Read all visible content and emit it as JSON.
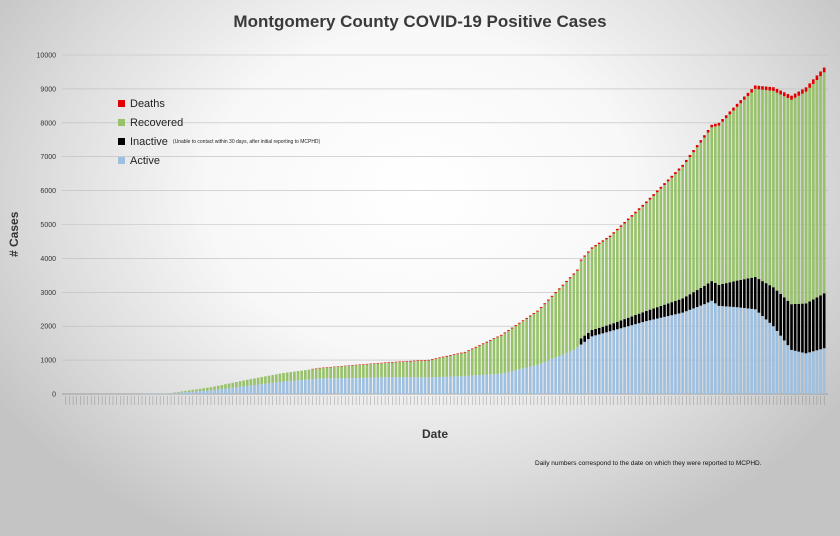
{
  "chart_data": {
    "type": "bar",
    "stacked": true,
    "title": "Montgomery County COVID-19 Positive Cases",
    "xlabel": "Date",
    "ylabel": "# Cases",
    "ylim": [
      0,
      10000
    ],
    "yticks": [
      0,
      1000,
      2000,
      3000,
      4000,
      5000,
      6000,
      7000,
      8000,
      9000,
      10000
    ],
    "grid": true,
    "legend_position": "left, upper area inside plot",
    "bar_count": 210,
    "series": [
      {
        "name": "Deaths",
        "color": "#e00000",
        "nonzero_from_bar": 68,
        "anchors": [
          [
            68,
            10
          ],
          [
            100,
            18
          ],
          [
            130,
            28
          ],
          [
            150,
            40
          ],
          [
            170,
            60
          ],
          [
            180,
            80
          ],
          [
            190,
            100
          ],
          [
            200,
            120
          ],
          [
            209,
            140
          ]
        ]
      },
      {
        "name": "Recovered",
        "color": "#97c16a",
        "nonzero_from_bar": 28,
        "anchors": [
          [
            28,
            4
          ],
          [
            40,
            90
          ],
          [
            50,
            180
          ],
          [
            60,
            250
          ],
          [
            70,
            300
          ],
          [
            80,
            380
          ],
          [
            90,
            430
          ],
          [
            100,
            500
          ],
          [
            110,
            690
          ],
          [
            120,
            1120
          ],
          [
            130,
            1570
          ],
          [
            140,
            2220
          ],
          [
            150,
            2580
          ],
          [
            160,
            3180
          ],
          [
            170,
            3880
          ],
          [
            180,
            4700
          ],
          [
            190,
            5550
          ],
          [
            200,
            6030
          ],
          [
            209,
            6520
          ]
        ]
      },
      {
        "name": "Inactive",
        "color": "#000000",
        "note": "(Unable to contact within 30 days, after initial reporting to MCPHD)",
        "nonzero_from_bar": 141,
        "anchors": [
          [
            141,
            0
          ],
          [
            142,
            180
          ],
          [
            150,
            200
          ],
          [
            160,
            300
          ],
          [
            170,
            420
          ],
          [
            180,
            620
          ],
          [
            190,
            950
          ],
          [
            200,
            1350
          ],
          [
            209,
            1620
          ]
        ]
      },
      {
        "name": "Active",
        "color": "#9dbfe0",
        "anchors": [
          [
            0,
            0
          ],
          [
            20,
            0
          ],
          [
            28,
            10
          ],
          [
            40,
            110
          ],
          [
            50,
            240
          ],
          [
            60,
            370
          ],
          [
            70,
            460
          ],
          [
            80,
            470
          ],
          [
            90,
            500
          ],
          [
            100,
            490
          ],
          [
            110,
            530
          ],
          [
            120,
            600
          ],
          [
            130,
            860
          ],
          [
            140,
            1300
          ],
          [
            145,
            1700
          ],
          [
            150,
            1850
          ],
          [
            160,
            2150
          ],
          [
            170,
            2400
          ],
          [
            176,
            2650
          ],
          [
            178,
            2750
          ],
          [
            180,
            2600
          ],
          [
            185,
            2560
          ],
          [
            190,
            2500
          ],
          [
            195,
            2000
          ],
          [
            200,
            1300
          ],
          [
            204,
            1200
          ],
          [
            209,
            1350
          ]
        ]
      }
    ],
    "x_tick_labels_note": "210 daily date labels along the x-axis are too small to read"
  },
  "footnote": "Daily numbers correspond to the date on which they were reported to MCPHD."
}
